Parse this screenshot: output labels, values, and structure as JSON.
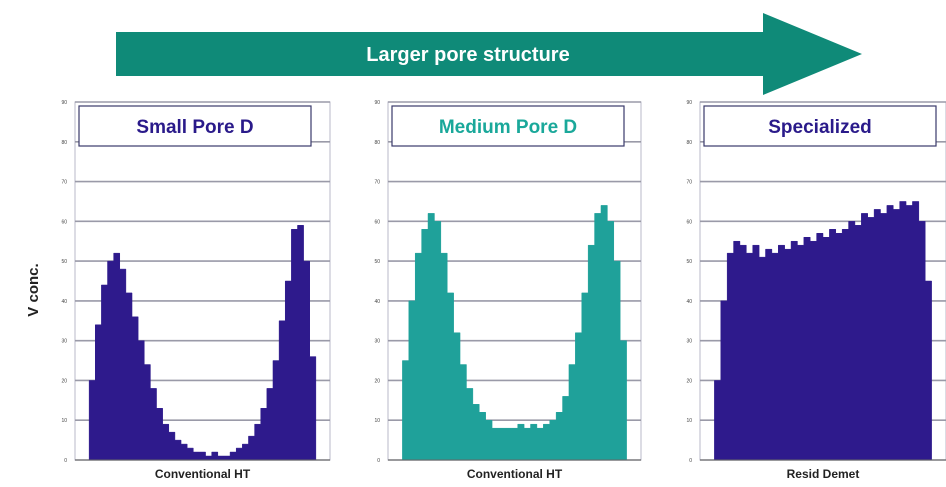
{
  "arrow": {
    "label": "Larger pore structure",
    "color": "#0f8a78"
  },
  "ylabel": "V conc.",
  "chart_data": [
    {
      "type": "area",
      "title": "Small Pore D",
      "title_color": "#2a1a8a",
      "xlabel": "Conventional HT",
      "fill": "#2e1a8c",
      "ylim": [
        0,
        90
      ],
      "y": [
        0,
        20,
        34,
        44,
        50,
        52,
        48,
        42,
        36,
        30,
        24,
        18,
        13,
        9,
        7,
        5,
        4,
        3,
        2,
        2,
        1,
        2,
        1,
        1,
        2,
        3,
        4,
        6,
        9,
        13,
        18,
        25,
        35,
        45,
        58,
        59,
        50,
        26,
        0
      ]
    },
    {
      "type": "area",
      "title": "Medium Pore D",
      "title_color": "#1aa89a",
      "xlabel": "Conventional HT",
      "fill": "#1fa19a",
      "ylim": [
        0,
        90
      ],
      "y": [
        0,
        25,
        40,
        52,
        58,
        62,
        60,
        52,
        42,
        32,
        24,
        18,
        14,
        12,
        10,
        8,
        8,
        8,
        8,
        9,
        8,
        9,
        8,
        9,
        10,
        12,
        16,
        24,
        32,
        42,
        54,
        62,
        64,
        60,
        50,
        30,
        0
      ]
    },
    {
      "type": "area",
      "title": "Specialized",
      "title_color": "#2a1a8a",
      "xlabel": "Resid Demet",
      "fill": "#2e1a8c",
      "ylim": [
        0,
        90
      ],
      "y": [
        0,
        20,
        40,
        52,
        55,
        54,
        52,
        54,
        51,
        53,
        52,
        54,
        53,
        55,
        54,
        56,
        55,
        57,
        56,
        58,
        57,
        58,
        60,
        59,
        62,
        61,
        63,
        62,
        64,
        63,
        65,
        64,
        65,
        60,
        45,
        0
      ]
    }
  ]
}
